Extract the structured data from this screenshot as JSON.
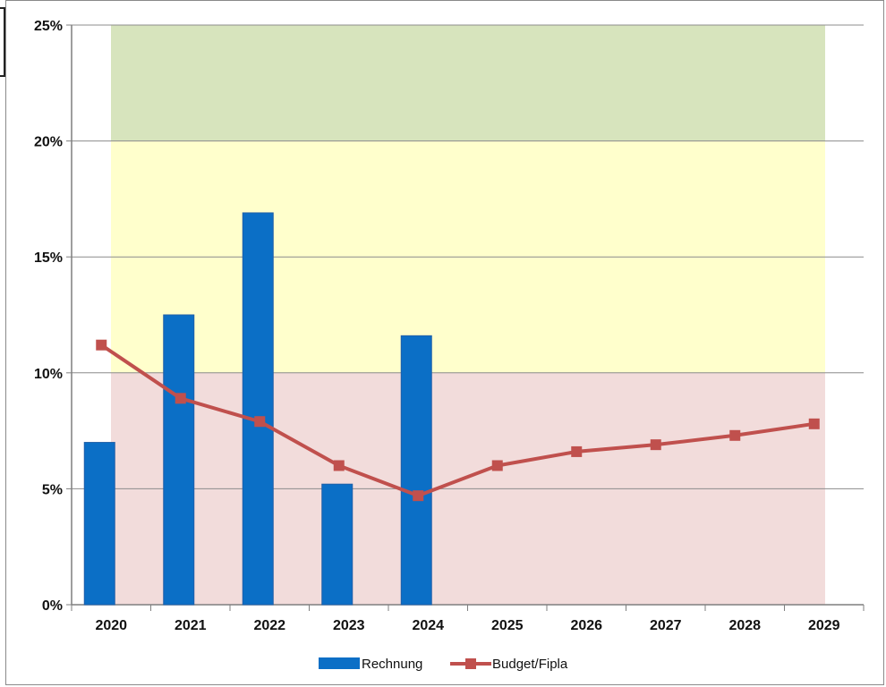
{
  "chart_data": {
    "type": "bar",
    "categories": [
      "2020",
      "2021",
      "2022",
      "2023",
      "2024",
      "2025",
      "2026",
      "2027",
      "2028",
      "2029"
    ],
    "series": [
      {
        "name": "Rechnung",
        "kind": "bar",
        "color": "#0b6fc6",
        "values": [
          7.0,
          12.5,
          16.9,
          5.2,
          11.6,
          null,
          null,
          null,
          null,
          null
        ]
      },
      {
        "name": "Budget/Fipla",
        "kind": "line",
        "color": "#c0504d",
        "values": [
          11.2,
          8.9,
          7.9,
          6.0,
          4.7,
          6.0,
          6.6,
          6.9,
          7.3,
          7.8
        ]
      }
    ],
    "ylim": [
      0,
      25
    ],
    "yticks": [
      0,
      5,
      10,
      15,
      20,
      25
    ],
    "ytick_labels": [
      "0%",
      "5%",
      "10%",
      "15%",
      "20%",
      "25%"
    ],
    "background_bands": [
      {
        "from": 0,
        "to": 10,
        "color": "#f2dcdb"
      },
      {
        "from": 10,
        "to": 20,
        "color": "#ffffcc"
      },
      {
        "from": 20,
        "to": 25,
        "color": "#d7e4bd"
      }
    ],
    "grid": true,
    "legend_position": "bottom-center",
    "title": "",
    "xlabel": "",
    "ylabel": ""
  }
}
